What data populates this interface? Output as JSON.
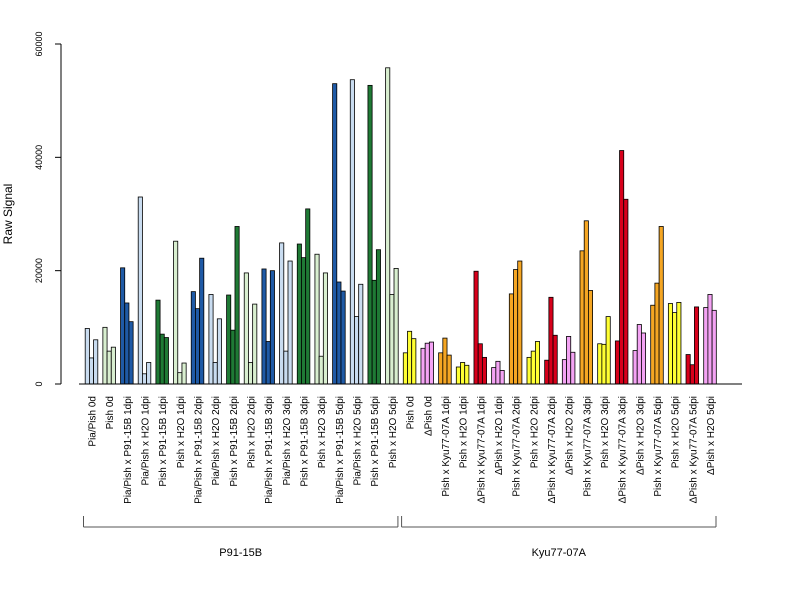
{
  "chart_data": {
    "type": "bar",
    "title": "",
    "xlabel": "",
    "ylabel": "Raw Signal",
    "ylim": [
      0,
      60000
    ],
    "yticks": [
      0,
      20000,
      40000,
      60000
    ],
    "grid": false,
    "colors": {
      "light_blue": "#c9dcf0",
      "dark_blue": "#1f5aa6",
      "dark_green": "#1f7a35",
      "light_green": "#d9efd0",
      "yellow": "#ffff33",
      "pink": "#f4a3f4",
      "orange": "#f5a623",
      "red": "#d7001b"
    },
    "categories": [
      {
        "label": "Pia/Pish 0d",
        "color": "light_blue",
        "values": [
          9800,
          4600,
          7800
        ]
      },
      {
        "label": "Pish 0d",
        "color": "light_green",
        "values": [
          10000,
          5800,
          6500
        ]
      },
      {
        "label": "Pia/Pish x P91-15B 1dpi",
        "color": "dark_blue",
        "values": [
          20500,
          14300,
          11000
        ]
      },
      {
        "label": "Pia/Pish x H2O 1dpi",
        "color": "light_blue",
        "values": [
          33000,
          1800,
          3800
        ]
      },
      {
        "label": "Pish x P91-15B 1dpi",
        "color": "dark_green",
        "values": [
          14800,
          8800,
          8200
        ]
      },
      {
        "label": "Pish x H2O 1dpi",
        "color": "light_green",
        "values": [
          25200,
          2000,
          3700
        ]
      },
      {
        "label": "Pia/Pish x P91-15B 2dpi",
        "color": "dark_blue",
        "values": [
          16300,
          13300,
          22200
        ]
      },
      {
        "label": "Pia/Pish x H2O 2dpi",
        "color": "light_blue",
        "values": [
          15800,
          3800,
          11500
        ]
      },
      {
        "label": "Pish x P91-15B 2dpi",
        "color": "dark_green",
        "values": [
          15700,
          9500,
          27800
        ]
      },
      {
        "label": "Pish x H2O 2dpi",
        "color": "light_green",
        "values": [
          19600,
          3800,
          14100
        ]
      },
      {
        "label": "Pia/Pish x P91-15B 3dpi",
        "color": "dark_blue",
        "values": [
          20300,
          7500,
          20000
        ]
      },
      {
        "label": "Pia/Pish x H2O 3dpi",
        "color": "light_blue",
        "values": [
          24900,
          5800,
          21700
        ]
      },
      {
        "label": "Pish x P91-15B 3dpi",
        "color": "dark_green",
        "values": [
          24700,
          22300,
          30900
        ]
      },
      {
        "label": "Pish x H2O 3dpi",
        "color": "light_green",
        "values": [
          22900,
          4900,
          19600
        ]
      },
      {
        "label": "Pia/Pish x P91-15B 5dpi",
        "color": "dark_blue",
        "values": [
          53000,
          18000,
          16400
        ]
      },
      {
        "label": "Pia/Pish x H2O 5dpi",
        "color": "light_blue",
        "values": [
          53700,
          11900,
          17600
        ]
      },
      {
        "label": "Pish x P91-15B 5dpi",
        "color": "dark_green",
        "values": [
          52700,
          18300,
          23700
        ]
      },
      {
        "label": "Pish x H2O 5dpi",
        "color": "light_green",
        "values": [
          55800,
          15800,
          20400
        ]
      },
      {
        "label": "Pish 0d",
        "color": "yellow",
        "values": [
          5500,
          9300,
          8000
        ]
      },
      {
        "label": "ΔPish 0d",
        "color": "pink",
        "values": [
          6300,
          7200,
          7400
        ]
      },
      {
        "label": "Pish x Kyu77-07A 1dpi",
        "color": "orange",
        "values": [
          5500,
          8100,
          5100
        ]
      },
      {
        "label": "Pish x H2O 1dpi",
        "color": "yellow",
        "values": [
          3000,
          3800,
          3300
        ]
      },
      {
        "label": "ΔPish x Kyu77-07A 1dpi",
        "color": "red",
        "values": [
          19900,
          7100,
          4700
        ]
      },
      {
        "label": "ΔPish x H2O 1dpi",
        "color": "pink",
        "values": [
          2900,
          4000,
          2400
        ]
      },
      {
        "label": "Pish x Kyu77-07A 2dpi",
        "color": "orange",
        "values": [
          15900,
          20200,
          21700
        ]
      },
      {
        "label": "Pish x H2O 2dpi",
        "color": "yellow",
        "values": [
          4700,
          5800,
          7500
        ]
      },
      {
        "label": "ΔPish x Kyu77-07A 2dpi",
        "color": "red",
        "values": [
          4200,
          15300,
          8600
        ]
      },
      {
        "label": "ΔPish x H2O 2dpi",
        "color": "pink",
        "values": [
          4300,
          8400,
          5600
        ]
      },
      {
        "label": "Pish x Kyu77-07A 3dpi",
        "color": "orange",
        "values": [
          23500,
          28800,
          16500
        ]
      },
      {
        "label": "Pish x H2O 3dpi",
        "color": "yellow",
        "values": [
          7100,
          7000,
          11900
        ]
      },
      {
        "label": "ΔPish x Kyu77-07A 3dpi",
        "color": "red",
        "values": [
          7600,
          41200,
          32600
        ]
      },
      {
        "label": "ΔPish x H2O 3dpi",
        "color": "pink",
        "values": [
          5900,
          10500,
          9000
        ]
      },
      {
        "label": "Pish x Kyu77-07A 5dpi",
        "color": "orange",
        "values": [
          13900,
          17800,
          27800
        ]
      },
      {
        "label": "Pish x H2O 5dpi",
        "color": "yellow",
        "values": [
          14200,
          12600,
          14400
        ]
      },
      {
        "label": "ΔPish x Kyu77-07A 5dpi",
        "color": "red",
        "values": [
          5200,
          3400,
          13600
        ]
      },
      {
        "label": "ΔPish x H2O 5dpi",
        "color": "pink",
        "values": [
          13500,
          15800,
          13000
        ]
      }
    ],
    "groups": [
      {
        "label": "P91-15B",
        "first_category": 0,
        "last_category": 17
      },
      {
        "label": "Kyu77-07A",
        "first_category": 18,
        "last_category": 35
      }
    ]
  }
}
